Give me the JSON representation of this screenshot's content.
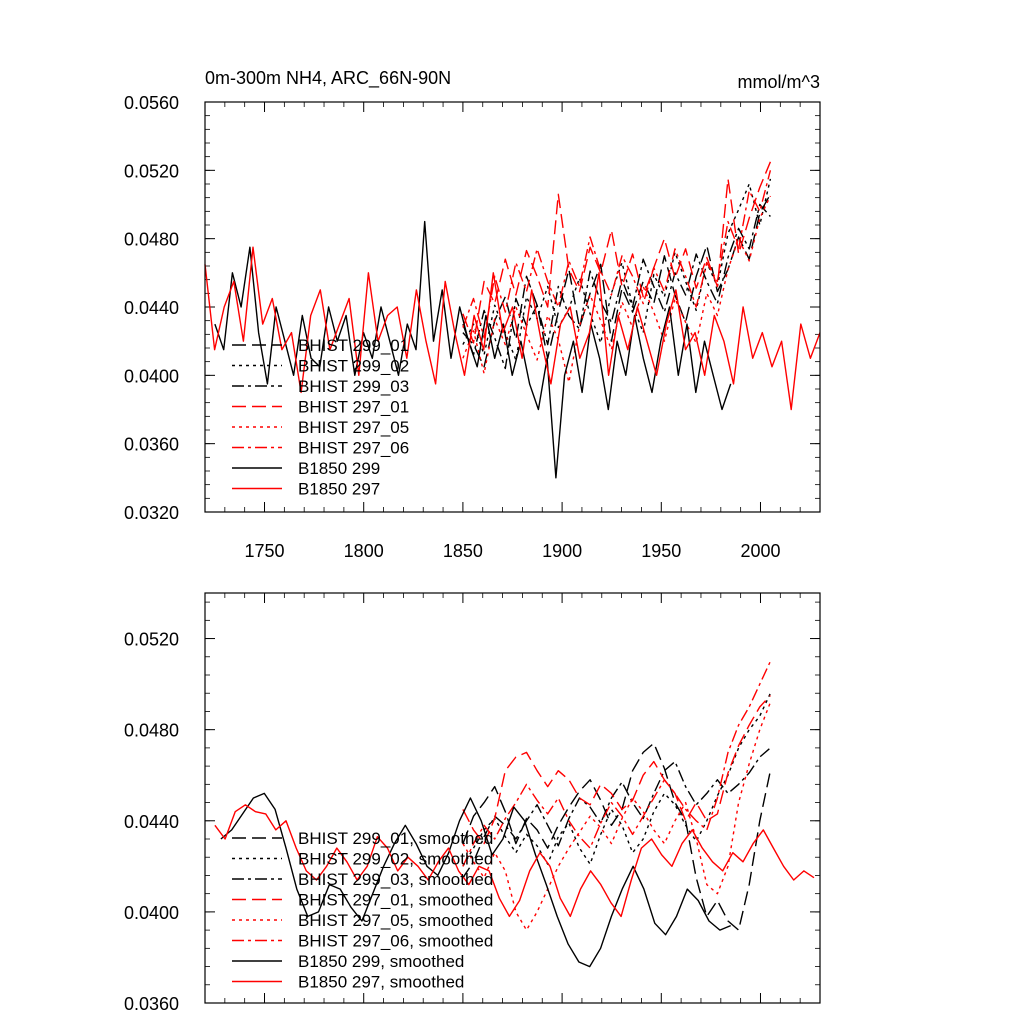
{
  "chart_data": [
    {
      "type": "line",
      "title": "0m-300m NH4, ARC_66N-90N",
      "units": "mmol/m^3",
      "xlim": [
        1720,
        2030
      ],
      "ylim": [
        0.032,
        0.056
      ],
      "xticks": [
        1750,
        1800,
        1850,
        1900,
        1950,
        2000
      ],
      "yticks": [
        0.032,
        0.036,
        0.04,
        0.044,
        0.048,
        0.052,
        0.056
      ],
      "ytick_labels": [
        "0.0320",
        "0.0360",
        "0.0400",
        "0.0440",
        "0.0480",
        "0.0520",
        "0.0560"
      ],
      "legend_position": "lower-left",
      "series": [
        {
          "name": "BHIST 299_01",
          "color": "#000000",
          "dash": "dash",
          "x_start": 1850,
          "x_end": 2005,
          "values": [
            0.0425,
            0.0418,
            0.0405,
            0.0432,
            0.0446,
            0.0421,
            0.0458,
            0.0441,
            0.041,
            0.0437,
            0.0462,
            0.0428,
            0.0448,
            0.0465,
            0.042,
            0.0451,
            0.0437,
            0.0455,
            0.0442,
            0.047,
            0.0447,
            0.0431,
            0.0458,
            0.0476,
            0.0449,
            0.0462,
            0.0481,
            0.0468,
            0.0495,
            0.0506
          ]
        },
        {
          "name": "BHIST 299_02",
          "color": "#000000",
          "dash": "dot",
          "x_start": 1850,
          "x_end": 2005,
          "values": [
            0.0418,
            0.043,
            0.0412,
            0.0441,
            0.0425,
            0.0409,
            0.0446,
            0.0433,
            0.0452,
            0.0428,
            0.0439,
            0.0457,
            0.0436,
            0.0419,
            0.0448,
            0.0466,
            0.0441,
            0.0425,
            0.0459,
            0.0446,
            0.0472,
            0.0455,
            0.0438,
            0.0466,
            0.0452,
            0.0483,
            0.0497,
            0.0512,
            0.0488,
            0.0515
          ]
        },
        {
          "name": "BHIST 299_03",
          "color": "#000000",
          "dash": "dashdot",
          "x_start": 1850,
          "x_end": 2005,
          "values": [
            0.043,
            0.0412,
            0.0438,
            0.0422,
            0.0404,
            0.0445,
            0.0429,
            0.0441,
            0.0418,
            0.0452,
            0.0435,
            0.0427,
            0.0461,
            0.0443,
            0.0431,
            0.0456,
            0.044,
            0.0468,
            0.0452,
            0.0437,
            0.046,
            0.0447,
            0.0471,
            0.0455,
            0.0442,
            0.0469,
            0.0486,
            0.0474,
            0.05,
            0.0493
          ]
        },
        {
          "name": "BHIST 297_01",
          "color": "#ff0000",
          "dash": "dash",
          "x_start": 1850,
          "x_end": 2005,
          "values": [
            0.0436,
            0.0419,
            0.0455,
            0.0442,
            0.0468,
            0.0447,
            0.0473,
            0.0458,
            0.044,
            0.0506,
            0.0462,
            0.0449,
            0.0475,
            0.046,
            0.0485,
            0.0452,
            0.0471,
            0.0446,
            0.0463,
            0.048,
            0.0457,
            0.0474,
            0.0451,
            0.0469,
            0.0452,
            0.0515,
            0.0471,
            0.0492,
            0.051,
            0.0525
          ]
        },
        {
          "name": "BHIST 297_05",
          "color": "#ff0000",
          "dash": "dot",
          "x_start": 1850,
          "x_end": 2005,
          "values": [
            0.041,
            0.0426,
            0.0401,
            0.0433,
            0.0418,
            0.044,
            0.0424,
            0.0409,
            0.0435,
            0.0421,
            0.0396,
            0.0429,
            0.0447,
            0.0432,
            0.0415,
            0.0443,
            0.0428,
            0.0452,
            0.0437,
            0.042,
            0.0445,
            0.0431,
            0.0419,
            0.0448,
            0.0435,
            0.0462,
            0.048,
            0.0467,
            0.0492,
            0.0505
          ]
        },
        {
          "name": "BHIST 297_06",
          "color": "#ff0000",
          "dash": "dashdot",
          "x_start": 1850,
          "x_end": 2005,
          "values": [
            0.0428,
            0.0445,
            0.0422,
            0.0458,
            0.0437,
            0.0466,
            0.0449,
            0.0474,
            0.0455,
            0.044,
            0.0467,
            0.0452,
            0.0481,
            0.0461,
            0.0447,
            0.047,
            0.0458,
            0.0442,
            0.0463,
            0.0449,
            0.0474,
            0.0458,
            0.044,
            0.0466,
            0.0455,
            0.049,
            0.0474,
            0.0508,
            0.0496,
            0.052
          ]
        },
        {
          "name": "B1850 299",
          "color": "#000000",
          "dash": "solid",
          "x_start": 1725,
          "x_end": 1985,
          "values": [
            0.043,
            0.0415,
            0.046,
            0.044,
            0.0475,
            0.0425,
            0.0395,
            0.044,
            0.042,
            0.04,
            0.0435,
            0.041,
            0.0405,
            0.044,
            0.042,
            0.0435,
            0.04,
            0.0425,
            0.041,
            0.044,
            0.042,
            0.04,
            0.043,
            0.0415,
            0.049,
            0.042,
            0.045,
            0.041,
            0.044,
            0.042,
            0.0405,
            0.0435,
            0.041,
            0.043,
            0.04,
            0.042,
            0.0395,
            0.038,
            0.041,
            0.034,
            0.04,
            0.042,
            0.039,
            0.043,
            0.041,
            0.038,
            0.042,
            0.04,
            0.0435,
            0.041,
            0.039,
            0.042,
            0.044,
            0.04,
            0.043,
            0.039,
            0.042,
            0.04,
            0.038,
            0.0395
          ]
        },
        {
          "name": "B1850 297",
          "color": "#ff0000",
          "dash": "solid",
          "x_start": 1720,
          "x_end": 2030,
          "values": [
            0.0465,
            0.0415,
            0.044,
            0.0455,
            0.042,
            0.0475,
            0.043,
            0.0445,
            0.0415,
            0.0425,
            0.039,
            0.0435,
            0.045,
            0.0415,
            0.043,
            0.0445,
            0.04,
            0.046,
            0.042,
            0.0435,
            0.044,
            0.041,
            0.045,
            0.042,
            0.0395,
            0.0455,
            0.0425,
            0.04,
            0.0435,
            0.0415,
            0.046,
            0.0425,
            0.044,
            0.041,
            0.045,
            0.042,
            0.0395,
            0.043,
            0.044,
            0.041,
            0.0425,
            0.046,
            0.04,
            0.0435,
            0.0415,
            0.044,
            0.042,
            0.04,
            0.043,
            0.045,
            0.0415,
            0.0425,
            0.04,
            0.0435,
            0.042,
            0.0395,
            0.044,
            0.041,
            0.0425,
            0.0405,
            0.042,
            0.038,
            0.043,
            0.041,
            0.0425
          ]
        }
      ]
    },
    {
      "type": "line",
      "title": "",
      "xlim": [
        1720,
        2030
      ],
      "ylim": [
        0.036,
        0.054
      ],
      "yticks": [
        0.036,
        0.04,
        0.044,
        0.048,
        0.052
      ],
      "ytick_labels": [
        "0.0360",
        "0.0400",
        "0.0440",
        "0.0480",
        "0.0520"
      ],
      "legend_position": "lower-left",
      "series": [
        {
          "name": "BHIST 299_01, smoothed",
          "color": "#000000",
          "dash": "dash",
          "x_start": 1850,
          "x_end": 2005,
          "values": [
            0.043,
            0.0442,
            0.0448,
            0.0455,
            0.0444,
            0.043,
            0.0441,
            0.0436,
            0.0428,
            0.0438,
            0.0446,
            0.0453,
            0.0458,
            0.0449,
            0.0438,
            0.0445,
            0.0462,
            0.047,
            0.0474,
            0.0463,
            0.0448,
            0.044,
            0.0415,
            0.0398,
            0.0405,
            0.0396,
            0.0392,
            0.0412,
            0.044,
            0.0462
          ]
        },
        {
          "name": "BHIST 299_02, smoothed",
          "color": "#000000",
          "dash": "dot",
          "x_start": 1850,
          "x_end": 2005,
          "values": [
            0.042,
            0.0428,
            0.0436,
            0.0441,
            0.0433,
            0.0426,
            0.0434,
            0.0429,
            0.0421,
            0.0433,
            0.0439,
            0.0428,
            0.0421,
            0.0434,
            0.0445,
            0.0438,
            0.0426,
            0.0432,
            0.0444,
            0.0452,
            0.0447,
            0.0438,
            0.0431,
            0.044,
            0.0451,
            0.046,
            0.0472,
            0.048,
            0.0486,
            0.0496
          ]
        },
        {
          "name": "BHIST 299_03, smoothed",
          "color": "#000000",
          "dash": "dashdot",
          "x_start": 1850,
          "x_end": 2005,
          "values": [
            0.0415,
            0.0422,
            0.0433,
            0.0442,
            0.0438,
            0.0432,
            0.044,
            0.0447,
            0.0438,
            0.0429,
            0.0441,
            0.045,
            0.0446,
            0.0439,
            0.045,
            0.0457,
            0.0448,
            0.0441,
            0.0452,
            0.0462,
            0.0466,
            0.0455,
            0.0447,
            0.0452,
            0.0458,
            0.0452,
            0.0456,
            0.0461,
            0.0468,
            0.0472
          ]
        },
        {
          "name": "BHIST 297_01, smoothed",
          "color": "#ff0000",
          "dash": "dash",
          "x_start": 1850,
          "x_end": 2005,
          "values": [
            0.0445,
            0.0436,
            0.043,
            0.0441,
            0.0462,
            0.0468,
            0.047,
            0.0462,
            0.0455,
            0.0462,
            0.0458,
            0.045,
            0.0447,
            0.0456,
            0.0452,
            0.0445,
            0.0449,
            0.046,
            0.0466,
            0.0458,
            0.0452,
            0.044,
            0.0448,
            0.044,
            0.0443,
            0.0461,
            0.0473,
            0.0482,
            0.049,
            0.0495
          ]
        },
        {
          "name": "BHIST 297_05, smoothed",
          "color": "#ff0000",
          "dash": "dot",
          "x_start": 1850,
          "x_end": 2005,
          "values": [
            0.043,
            0.0422,
            0.0415,
            0.0426,
            0.0418,
            0.04,
            0.0392,
            0.04,
            0.041,
            0.042,
            0.0428,
            0.0435,
            0.0442,
            0.0437,
            0.043,
            0.0441,
            0.045,
            0.0444,
            0.0436,
            0.043,
            0.044,
            0.0448,
            0.0432,
            0.0412,
            0.0408,
            0.042,
            0.0448,
            0.0465,
            0.048,
            0.0492
          ]
        },
        {
          "name": "BHIST 297_06, smoothed",
          "color": "#ff0000",
          "dash": "dashdot",
          "x_start": 1850,
          "x_end": 2005,
          "values": [
            0.042,
            0.043,
            0.0438,
            0.0432,
            0.0441,
            0.0448,
            0.0456,
            0.0449,
            0.0443,
            0.045,
            0.044,
            0.0433,
            0.0428,
            0.0439,
            0.0448,
            0.0442,
            0.0434,
            0.0442,
            0.045,
            0.0458,
            0.0452,
            0.0445,
            0.044,
            0.0436,
            0.045,
            0.047,
            0.0482,
            0.049,
            0.05,
            0.051
          ]
        },
        {
          "name": "B1850 299, smoothed",
          "color": "#000000",
          "dash": "solid",
          "x_start": 1728,
          "x_end": 1985,
          "values": [
            0.0432,
            0.0436,
            0.0443,
            0.045,
            0.0452,
            0.0445,
            0.0428,
            0.041,
            0.0398,
            0.04,
            0.0412,
            0.041,
            0.0402,
            0.0396,
            0.0408,
            0.042,
            0.043,
            0.0438,
            0.043,
            0.042,
            0.0416,
            0.0426,
            0.044,
            0.045,
            0.044,
            0.0425,
            0.0432,
            0.0446,
            0.044,
            0.0425,
            0.0412,
            0.0398,
            0.0386,
            0.0378,
            0.0376,
            0.0384,
            0.0398,
            0.041,
            0.042,
            0.041,
            0.0395,
            0.039,
            0.0398,
            0.041,
            0.0405,
            0.0396,
            0.0392,
            0.0394
          ]
        },
        {
          "name": "B1850 297, smoothed",
          "color": "#ff0000",
          "dash": "solid",
          "x_start": 1725,
          "x_end": 2027,
          "values": [
            0.0438,
            0.0432,
            0.0444,
            0.0447,
            0.0444,
            0.0443,
            0.0436,
            0.044,
            0.0428,
            0.0418,
            0.0414,
            0.042,
            0.0428,
            0.0422,
            0.0414,
            0.042,
            0.0433,
            0.0428,
            0.0418,
            0.0424,
            0.042,
            0.0414,
            0.0422,
            0.0428,
            0.0418,
            0.0412,
            0.042,
            0.0418,
            0.0406,
            0.0398,
            0.0405,
            0.0418,
            0.0426,
            0.042,
            0.0406,
            0.0398,
            0.041,
            0.0418,
            0.0412,
            0.0404,
            0.0398,
            0.0414,
            0.0428,
            0.0432,
            0.0425,
            0.042,
            0.043,
            0.0436,
            0.0428,
            0.0422,
            0.0418,
            0.0426,
            0.0422,
            0.043,
            0.0436,
            0.0428,
            0.042,
            0.0414,
            0.0418,
            0.0415
          ]
        }
      ]
    }
  ]
}
